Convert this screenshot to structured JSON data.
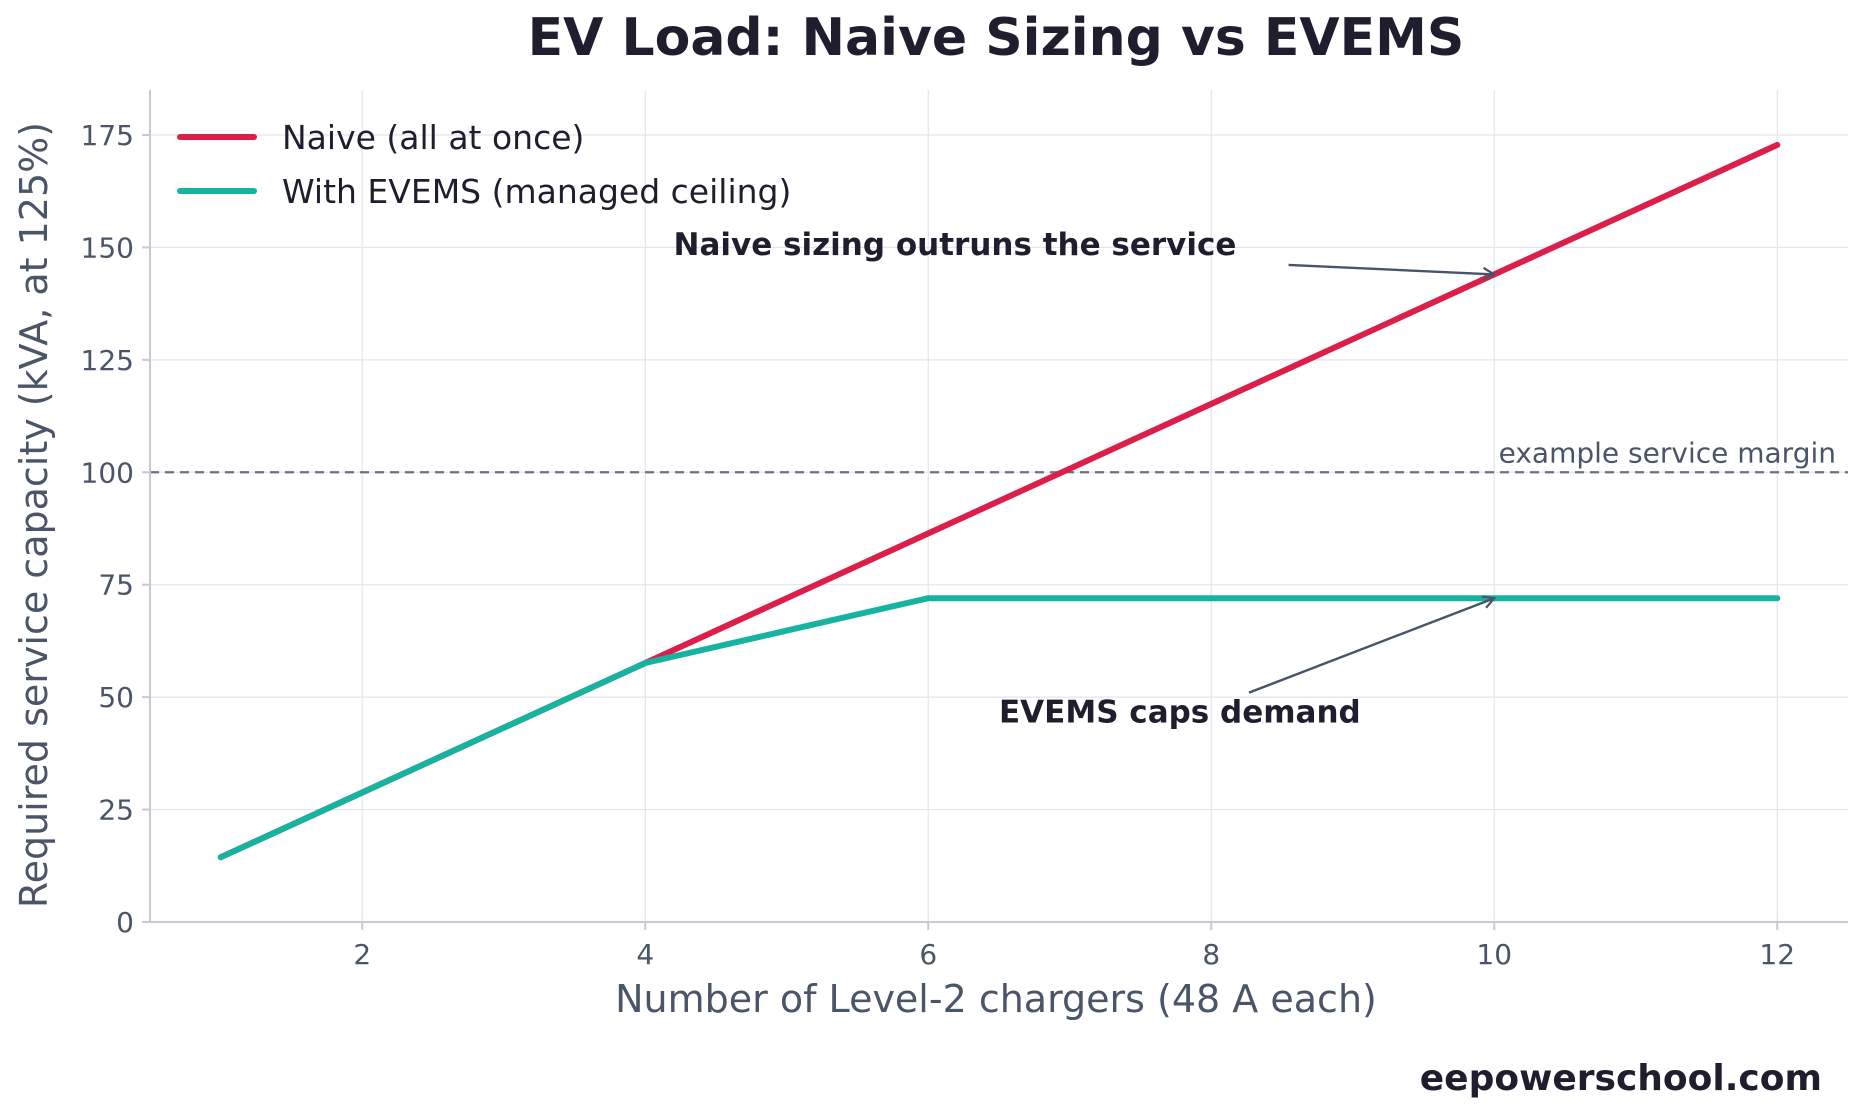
{
  "chart_data": {
    "type": "line",
    "title": "EV Load: Naive Sizing vs EVEMS",
    "xlabel": "Number of Level-2 chargers (48 A each)",
    "ylabel": "Required service capacity (kVA, at 125%)",
    "xlim": [
      0.5,
      12.5
    ],
    "ylim": [
      0,
      185
    ],
    "xticks": [
      2,
      4,
      6,
      8,
      10,
      12
    ],
    "yticks": [
      0,
      25,
      50,
      75,
      100,
      125,
      150,
      175
    ],
    "grid": true,
    "legend_position": "top-left",
    "series": [
      {
        "name": "Naive (all at once)",
        "color": "#dc1f4a",
        "x": [
          1,
          2,
          3,
          4,
          5,
          6,
          7,
          8,
          9,
          10,
          11,
          12
        ],
        "y": [
          14.4,
          28.8,
          43.2,
          57.6,
          72.0,
          86.4,
          100.8,
          115.2,
          129.6,
          144.0,
          158.4,
          172.8
        ]
      },
      {
        "name": "With EVEMS (managed ceiling)",
        "color": "#16b3a0",
        "x": [
          1,
          2,
          3,
          4,
          5,
          6,
          7,
          8,
          9,
          10,
          11,
          12
        ],
        "y": [
          14.4,
          28.8,
          43.2,
          57.6,
          64.8,
          72.0,
          72.0,
          72.0,
          72.0,
          72.0,
          72.0,
          72.0
        ]
      }
    ],
    "reference_line": {
      "y": 100,
      "label": "example service margin",
      "color": "#6b7280"
    },
    "annotations": [
      {
        "text": "Naive sizing outruns the service",
        "target_x": 10,
        "target_y": 144,
        "text_x": 4.2,
        "text_y": 151
      },
      {
        "text": "EVEMS caps demand",
        "target_x": 10,
        "target_y": 72,
        "text_x": 6.5,
        "text_y": 47
      }
    ]
  },
  "watermark": "eepowerschool.com"
}
